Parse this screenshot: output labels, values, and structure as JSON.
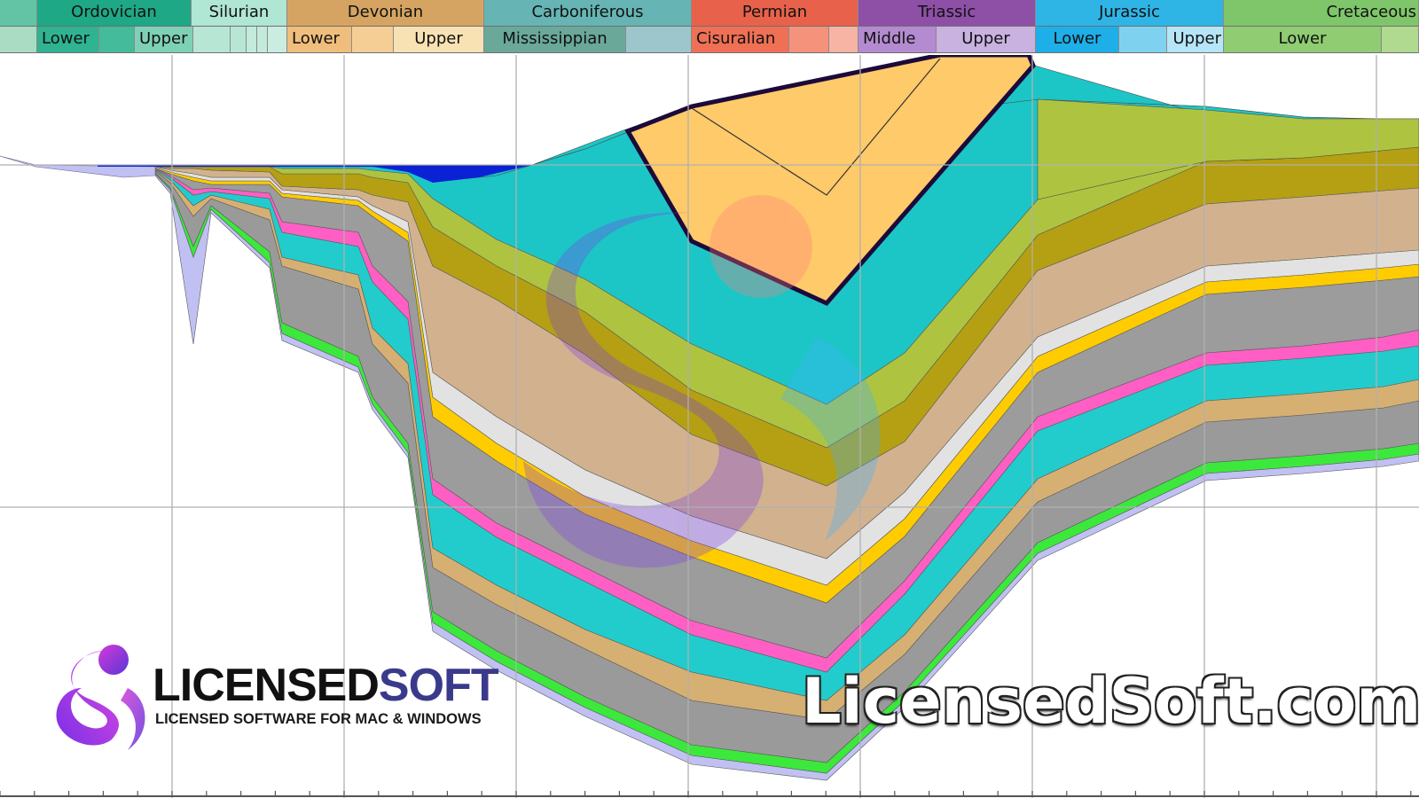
{
  "timescale": {
    "periods": [
      {
        "label": "",
        "color": "#62c4a5"
      },
      {
        "label": "Ordovician",
        "color": "#1fa885"
      },
      {
        "label": "Silurian",
        "color": "#b0e6d4"
      },
      {
        "label": "Devonian",
        "color": "#d6a462"
      },
      {
        "label": "Carboniferous",
        "color": "#66b4b4"
      },
      {
        "label": "Permian",
        "color": "#e8614a"
      },
      {
        "label": "Triassic",
        "color": "#8e4fa6"
      },
      {
        "label": "Jurassic",
        "color": "#2fb4e6"
      },
      {
        "label": "Cretaceous",
        "color": "#7fc66a"
      }
    ],
    "epochs": [
      {
        "label": "",
        "color": "#a9dcc2"
      },
      {
        "label": "Lower",
        "color": "#2fb391"
      },
      {
        "label": "",
        "color": "#44bb9a"
      },
      {
        "label": "Upper",
        "color": "#7fd1b6"
      },
      {
        "label": "",
        "color": "#b7e7d4"
      },
      {
        "label": "",
        "color": "#b7e7d4"
      },
      {
        "label": "",
        "color": "#c2ebdc"
      },
      {
        "label": "",
        "color": "#c2ebdc"
      },
      {
        "label": "",
        "color": "#c9eee1"
      },
      {
        "label": "Lower",
        "color": "#f0be7c"
      },
      {
        "label": "",
        "color": "#f5ce95"
      },
      {
        "label": "Upper",
        "color": "#f8e2b4"
      },
      {
        "label": "Mississippian",
        "color": "#6aa89a"
      },
      {
        "label": "",
        "color": "#9cc6cb"
      },
      {
        "label": "Cisuralian",
        "color": "#ef7055"
      },
      {
        "label": "",
        "color": "#f4927c"
      },
      {
        "label": "",
        "color": "#f7b4a4"
      },
      {
        "label": "Middle",
        "color": "#b48ad1"
      },
      {
        "label": "Upper",
        "color": "#c9b1e0"
      },
      {
        "label": "Lower",
        "color": "#1eaee8"
      },
      {
        "label": "",
        "color": "#7fd2ef"
      },
      {
        "label": "Upper",
        "color": "#b5e5f6"
      },
      {
        "label": "Lower",
        "color": "#8fcc72"
      },
      {
        "label": "",
        "color": "#b0da8f"
      }
    ]
  },
  "branding": {
    "logo_name_part1": "LICENSED",
    "logo_name_part2": "SOFT",
    "logo_tagline": "LICENSED SOFTWARE FOR MAC & WINDOWS",
    "watermark_text": "LicensedSoft.com",
    "logo_gradient": [
      "#d43ad8",
      "#6a3be0"
    ]
  },
  "layers": [
    {
      "name": "basement-lavender",
      "color": "#c0c0f2"
    },
    {
      "name": "green-base",
      "color": "#3ce83c"
    },
    {
      "name": "grey-lower",
      "color": "#9a9a9a"
    },
    {
      "name": "tan-lower",
      "color": "#d6b072"
    },
    {
      "name": "cyan-lower",
      "color": "#22cccc"
    },
    {
      "name": "pink",
      "color": "#ff5fc4"
    },
    {
      "name": "grey-middle",
      "color": "#9c9c9c"
    },
    {
      "name": "yellow",
      "color": "#ffcc00"
    },
    {
      "name": "light-grey",
      "color": "#e2e2e2"
    },
    {
      "name": "beige",
      "color": "#d2b28e"
    },
    {
      "name": "olive",
      "color": "#b4a012"
    },
    {
      "name": "yellow-green",
      "color": "#aec440"
    },
    {
      "name": "cyan-upper",
      "color": "#1cc6c6"
    },
    {
      "name": "cap-orange",
      "color": "#ffca6a"
    },
    {
      "name": "water-blue",
      "color": "#0a22d4"
    }
  ]
}
